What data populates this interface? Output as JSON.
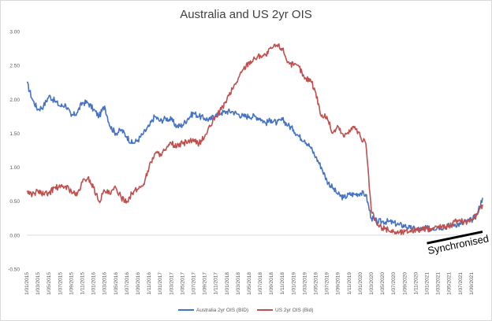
{
  "chart_data": {
    "type": "line",
    "title": "Australia and US 2yr OIS",
    "xlabel": "",
    "ylabel": "",
    "ylim": [
      -0.5,
      3.0
    ],
    "yticks": [
      "3.00",
      "2.50",
      "2.00",
      "1.50",
      "1.00",
      "0.50",
      "0.00",
      "-0.50"
    ],
    "ytick_values": [
      3.0,
      2.5,
      2.0,
      1.5,
      1.0,
      0.5,
      0.0,
      -0.5
    ],
    "x_range": [
      "2015-01",
      "2021-11"
    ],
    "xticks": [
      "1/01/2015",
      "1/03/2015",
      "1/05/2015",
      "1/07/2015",
      "1/09/2015",
      "1/11/2015",
      "1/01/2016",
      "1/03/2016",
      "1/05/2016",
      "1/07/2016",
      "1/09/2016",
      "1/11/2016",
      "1/01/2017",
      "1/03/2017",
      "1/05/2017",
      "1/07/2017",
      "1/09/2017",
      "1/11/2017",
      "1/01/2018",
      "1/03/2018",
      "1/05/2018",
      "1/07/2018",
      "1/09/2018",
      "1/11/2018",
      "1/01/2019",
      "1/03/2019",
      "1/05/2019",
      "1/07/2019",
      "1/09/2019",
      "1/11/2019",
      "1/01/2020",
      "1/03/2020",
      "1/05/2020",
      "1/07/2020",
      "1/09/2020",
      "1/11/2020",
      "1/01/2021",
      "1/03/2021",
      "1/05/2021",
      "1/07/2021",
      "1/09/2021"
    ],
    "legend_position": "bottom",
    "grid": false,
    "series": [
      {
        "name": "Australia 2yr OIS  (BID)",
        "color": "#4472c4",
        "points": [
          [
            "2015-01",
            2.25
          ],
          [
            "2015-02",
            2.0
          ],
          [
            "2015-03",
            1.85
          ],
          [
            "2015-04",
            1.9
          ],
          [
            "2015-05",
            2.05
          ],
          [
            "2015-06",
            1.98
          ],
          [
            "2015-07",
            1.9
          ],
          [
            "2015-08",
            1.92
          ],
          [
            "2015-09",
            1.75
          ],
          [
            "2015-10",
            1.8
          ],
          [
            "2015-11",
            1.95
          ],
          [
            "2015-12",
            1.95
          ],
          [
            "2016-01",
            1.85
          ],
          [
            "2016-02",
            1.75
          ],
          [
            "2016-03",
            1.9
          ],
          [
            "2016-04",
            1.6
          ],
          [
            "2016-05",
            1.5
          ],
          [
            "2016-06",
            1.55
          ],
          [
            "2016-07",
            1.45
          ],
          [
            "2016-08",
            1.35
          ],
          [
            "2016-09",
            1.4
          ],
          [
            "2016-10",
            1.5
          ],
          [
            "2016-11",
            1.6
          ],
          [
            "2016-12",
            1.75
          ],
          [
            "2017-01",
            1.68
          ],
          [
            "2017-02",
            1.72
          ],
          [
            "2017-03",
            1.7
          ],
          [
            "2017-04",
            1.6
          ],
          [
            "2017-05",
            1.62
          ],
          [
            "2017-06",
            1.72
          ],
          [
            "2017-07",
            1.8
          ],
          [
            "2017-08",
            1.75
          ],
          [
            "2017-09",
            1.72
          ],
          [
            "2017-10",
            1.7
          ],
          [
            "2017-11",
            1.78
          ],
          [
            "2017-12",
            1.8
          ],
          [
            "2018-01",
            1.82
          ],
          [
            "2018-02",
            1.82
          ],
          [
            "2018-03",
            1.78
          ],
          [
            "2018-04",
            1.75
          ],
          [
            "2018-05",
            1.75
          ],
          [
            "2018-06",
            1.75
          ],
          [
            "2018-07",
            1.72
          ],
          [
            "2018-08",
            1.65
          ],
          [
            "2018-09",
            1.7
          ],
          [
            "2018-10",
            1.65
          ],
          [
            "2018-11",
            1.7
          ],
          [
            "2018-12",
            1.62
          ],
          [
            "2019-01",
            1.55
          ],
          [
            "2019-02",
            1.45
          ],
          [
            "2019-03",
            1.4
          ],
          [
            "2019-04",
            1.3
          ],
          [
            "2019-05",
            1.15
          ],
          [
            "2019-06",
            1.0
          ],
          [
            "2019-07",
            0.8
          ],
          [
            "2019-08",
            0.7
          ],
          [
            "2019-09",
            0.6
          ],
          [
            "2019-10",
            0.55
          ],
          [
            "2019-11",
            0.6
          ],
          [
            "2019-12",
            0.6
          ],
          [
            "2020-01",
            0.62
          ],
          [
            "2020-02",
            0.6
          ],
          [
            "2020-03",
            0.25
          ],
          [
            "2020-04",
            0.2
          ],
          [
            "2020-05",
            0.2
          ],
          [
            "2020-06",
            0.2
          ],
          [
            "2020-07",
            0.18
          ],
          [
            "2020-08",
            0.15
          ],
          [
            "2020-09",
            0.14
          ],
          [
            "2020-10",
            0.1
          ],
          [
            "2020-11",
            0.09
          ],
          [
            "2020-12",
            0.09
          ],
          [
            "2021-01",
            0.1
          ],
          [
            "2021-02",
            0.1
          ],
          [
            "2021-03",
            0.12
          ],
          [
            "2021-04",
            0.12
          ],
          [
            "2021-05",
            0.14
          ],
          [
            "2021-06",
            0.16
          ],
          [
            "2021-07",
            0.16
          ],
          [
            "2021-08",
            0.2
          ],
          [
            "2021-09",
            0.22
          ],
          [
            "2021-10",
            0.3
          ],
          [
            "2021-11",
            0.55
          ]
        ]
      },
      {
        "name": "US 2yr OIS (Bid)",
        "color": "#c0504d",
        "points": [
          [
            "2015-01",
            0.65
          ],
          [
            "2015-02",
            0.6
          ],
          [
            "2015-03",
            0.65
          ],
          [
            "2015-04",
            0.6
          ],
          [
            "2015-05",
            0.62
          ],
          [
            "2015-06",
            0.7
          ],
          [
            "2015-07",
            0.7
          ],
          [
            "2015-08",
            0.72
          ],
          [
            "2015-09",
            0.65
          ],
          [
            "2015-10",
            0.58
          ],
          [
            "2015-11",
            0.78
          ],
          [
            "2015-12",
            0.85
          ],
          [
            "2016-01",
            0.7
          ],
          [
            "2016-02",
            0.5
          ],
          [
            "2016-03",
            0.65
          ],
          [
            "2016-04",
            0.6
          ],
          [
            "2016-05",
            0.7
          ],
          [
            "2016-06",
            0.55
          ],
          [
            "2016-07",
            0.5
          ],
          [
            "2016-08",
            0.62
          ],
          [
            "2016-09",
            0.68
          ],
          [
            "2016-10",
            0.75
          ],
          [
            "2016-11",
            1.0
          ],
          [
            "2016-12",
            1.2
          ],
          [
            "2017-01",
            1.2
          ],
          [
            "2017-02",
            1.25
          ],
          [
            "2017-03",
            1.35
          ],
          [
            "2017-04",
            1.3
          ],
          [
            "2017-05",
            1.35
          ],
          [
            "2017-06",
            1.38
          ],
          [
            "2017-07",
            1.38
          ],
          [
            "2017-08",
            1.35
          ],
          [
            "2017-09",
            1.45
          ],
          [
            "2017-10",
            1.6
          ],
          [
            "2017-11",
            1.75
          ],
          [
            "2017-12",
            1.85
          ],
          [
            "2018-01",
            2.0
          ],
          [
            "2018-02",
            2.15
          ],
          [
            "2018-03",
            2.3
          ],
          [
            "2018-04",
            2.45
          ],
          [
            "2018-05",
            2.55
          ],
          [
            "2018-06",
            2.6
          ],
          [
            "2018-07",
            2.65
          ],
          [
            "2018-08",
            2.65
          ],
          [
            "2018-09",
            2.75
          ],
          [
            "2018-10",
            2.8
          ],
          [
            "2018-11",
            2.75
          ],
          [
            "2018-12",
            2.55
          ],
          [
            "2019-01",
            2.5
          ],
          [
            "2019-02",
            2.48
          ],
          [
            "2019-03",
            2.3
          ],
          [
            "2019-04",
            2.3
          ],
          [
            "2019-05",
            2.1
          ],
          [
            "2019-06",
            1.75
          ],
          [
            "2019-07",
            1.75
          ],
          [
            "2019-08",
            1.5
          ],
          [
            "2019-09",
            1.6
          ],
          [
            "2019-10",
            1.45
          ],
          [
            "2019-11",
            1.55
          ],
          [
            "2019-12",
            1.6
          ],
          [
            "2020-01",
            1.45
          ],
          [
            "2020-02",
            1.35
          ],
          [
            "2020-03",
            0.35
          ],
          [
            "2020-04",
            0.15
          ],
          [
            "2020-05",
            0.1
          ],
          [
            "2020-06",
            0.08
          ],
          [
            "2020-07",
            0.05
          ],
          [
            "2020-08",
            0.04
          ],
          [
            "2020-09",
            0.05
          ],
          [
            "2020-10",
            0.07
          ],
          [
            "2020-11",
            0.08
          ],
          [
            "2020-12",
            0.08
          ],
          [
            "2021-01",
            0.09
          ],
          [
            "2021-02",
            0.1
          ],
          [
            "2021-03",
            0.13
          ],
          [
            "2021-04",
            0.12
          ],
          [
            "2021-05",
            0.14
          ],
          [
            "2021-06",
            0.2
          ],
          [
            "2021-07",
            0.2
          ],
          [
            "2021-08",
            0.2
          ],
          [
            "2021-09",
            0.23
          ],
          [
            "2021-10",
            0.3
          ],
          [
            "2021-11",
            0.45
          ]
        ]
      }
    ],
    "annotations": [
      {
        "text": "Synchronised",
        "color": "#000000",
        "line": [
          [
            "2021-01",
            -0.12
          ],
          [
            "2021-11",
            0.05
          ]
        ]
      }
    ]
  }
}
